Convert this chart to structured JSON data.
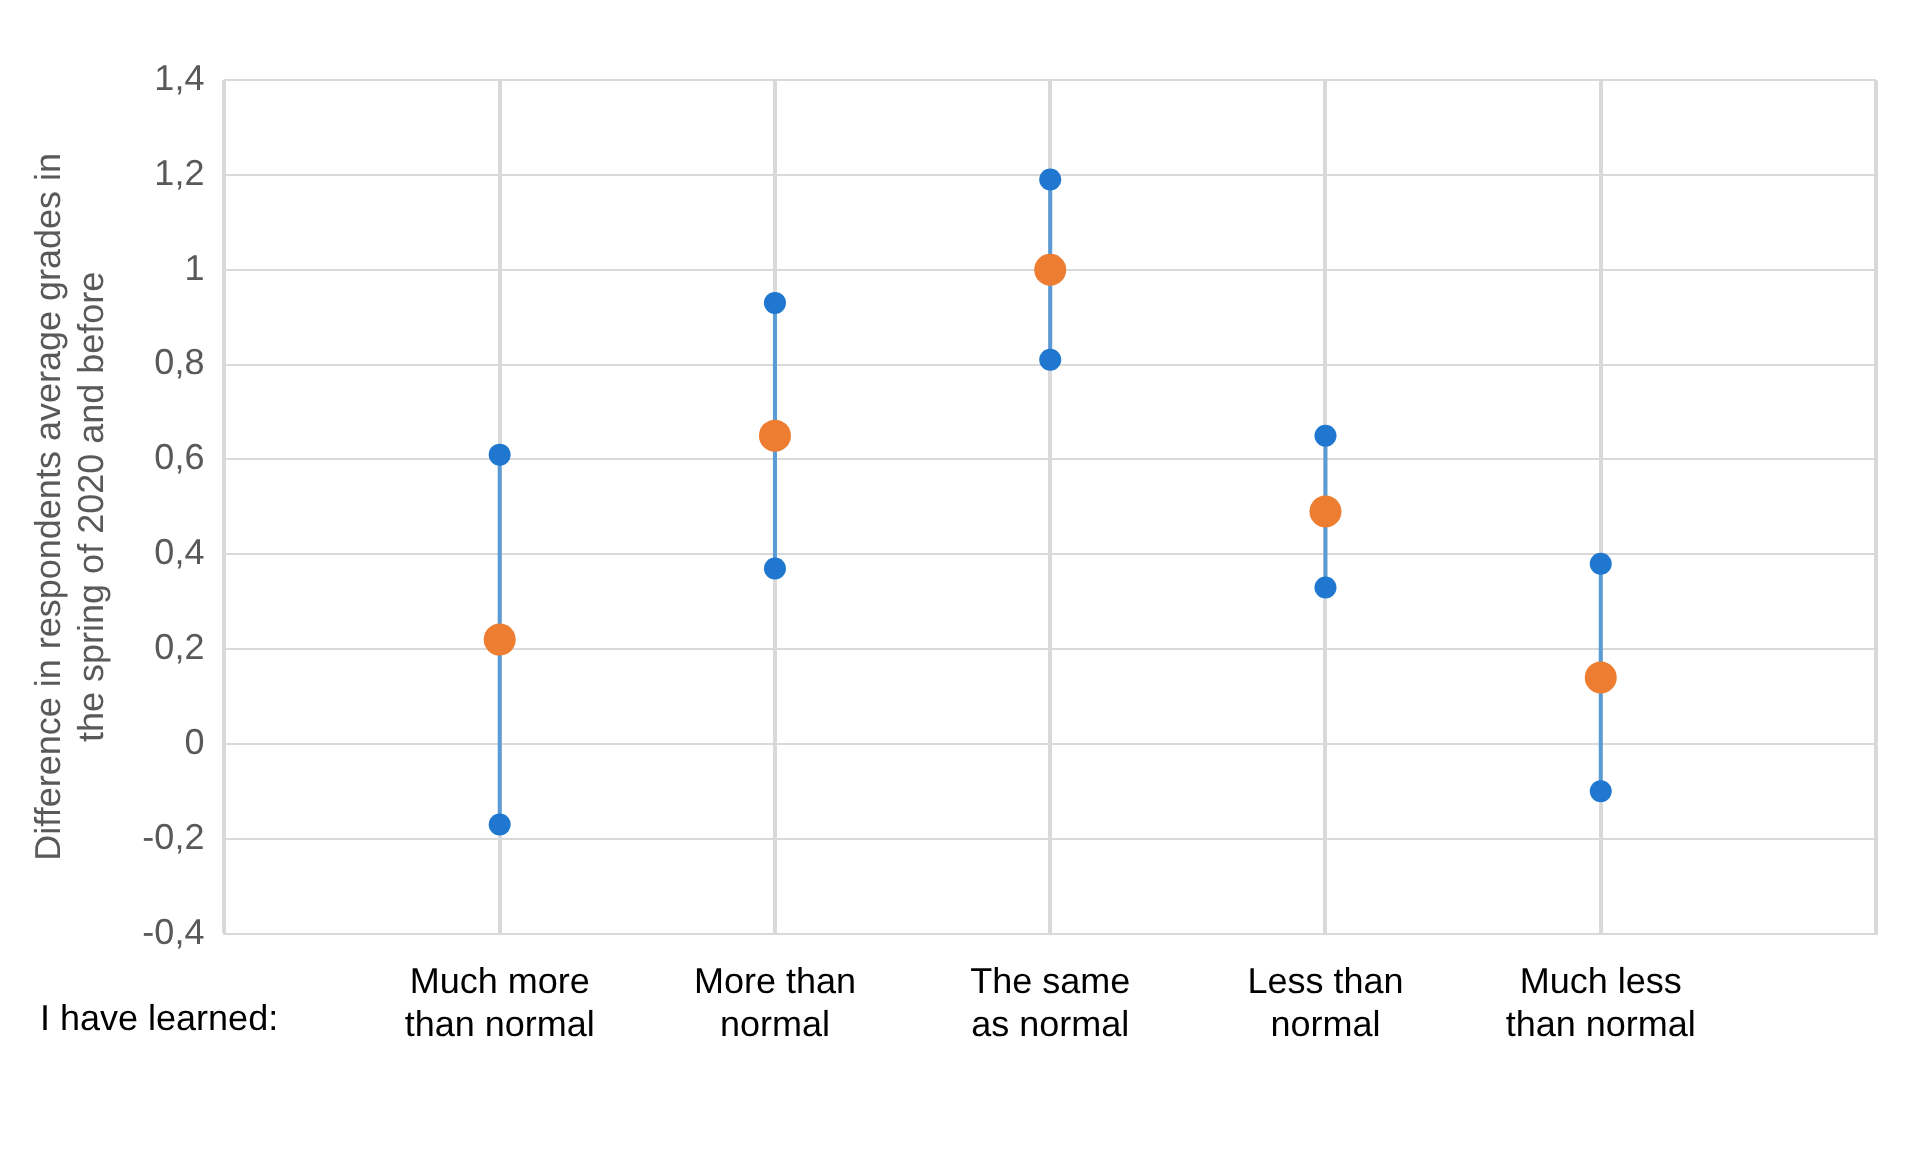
{
  "chart_data": {
    "type": "scatter",
    "ylabel": "Difference in respondents average grades in the spring of 2020 and before",
    "categories": [
      null,
      "Much more than normal",
      "More than normal",
      "The same as normal",
      "Less than normal",
      "Much less than normal",
      null
    ],
    "series": [
      {
        "color": "#1f77d0",
        "values": [
          null,
          0.61,
          0.93,
          1.19,
          0.65,
          0.38,
          null
        ]
      },
      {
        "color": "#1f77d0",
        "values": [
          null,
          -0.17,
          0.37,
          0.81,
          0.33,
          -0.1,
          null
        ]
      },
      {
        "color": "#ed7d31",
        "values": [
          null,
          0.22,
          0.65,
          1.0,
          0.49,
          0.14,
          null
        ]
      }
    ],
    "ylim": [
      -0.4,
      1.4
    ],
    "yticks": [
      {
        "value": -0.4,
        "label": "-0,4"
      },
      {
        "value": -0.2,
        "label": "-0,2"
      },
      {
        "value": 0,
        "label": "0"
      },
      {
        "value": 0.2,
        "label": "0,2"
      },
      {
        "value": 0.4,
        "label": "0,4"
      },
      {
        "value": 0.6,
        "label": "0,6"
      },
      {
        "value": 0.8,
        "label": "0,8"
      },
      {
        "value": 1,
        "label": "1"
      },
      {
        "value": 1.2,
        "label": "1,2"
      },
      {
        "value": 1.4,
        "label": "1,4"
      }
    ],
    "grid": true,
    "marker": "circle",
    "annotations": [
      "I have learned:"
    ]
  }
}
